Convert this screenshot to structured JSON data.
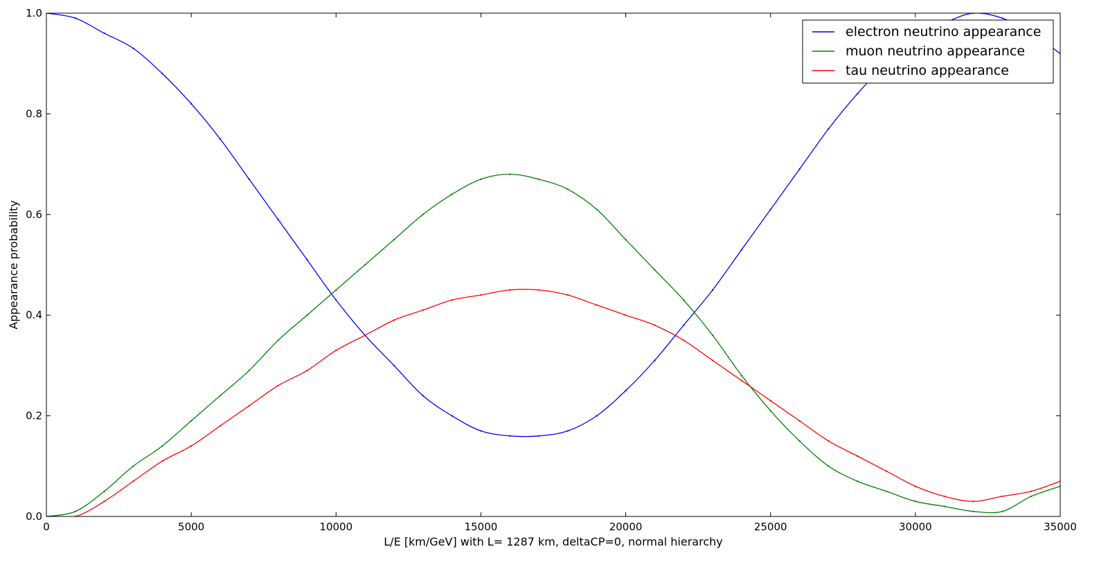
{
  "chart_data": {
    "type": "line",
    "title": "",
    "xlabel": "L/E [km/GeV]  with  L= 1287 km, deltaCP=0, normal hierarchy",
    "ylabel": "Appearance probability",
    "xlim": [
      0,
      35000
    ],
    "ylim": [
      0.0,
      1.0
    ],
    "x_ticks": [
      0,
      5000,
      10000,
      15000,
      20000,
      25000,
      30000,
      35000
    ],
    "x_tick_labels": [
      "0",
      "5000",
      "10000",
      "15000",
      "20000",
      "25000",
      "30000",
      "35000"
    ],
    "y_ticks": [
      0.0,
      0.2,
      0.4,
      0.6,
      0.8,
      1.0
    ],
    "y_tick_labels": [
      "0.0",
      "0.2",
      "0.4",
      "0.6",
      "0.8",
      "1.0"
    ],
    "grid": false,
    "legend_position": "top-right",
    "x": [
      0,
      1000,
      2000,
      3000,
      4000,
      5000,
      6000,
      7000,
      8000,
      9000,
      10000,
      11000,
      12000,
      13000,
      14000,
      15000,
      16000,
      17000,
      18000,
      19000,
      20000,
      21000,
      22000,
      23000,
      24000,
      25000,
      26000,
      27000,
      28000,
      29000,
      30000,
      31000,
      32000,
      33000,
      34000,
      35000
    ],
    "series": [
      {
        "name": "electron neutrino appearance",
        "color": "#0000ff",
        "values": [
          1.0,
          0.99,
          0.96,
          0.93,
          0.88,
          0.82,
          0.75,
          0.67,
          0.59,
          0.51,
          0.43,
          0.36,
          0.3,
          0.24,
          0.2,
          0.17,
          0.16,
          0.16,
          0.17,
          0.2,
          0.25,
          0.31,
          0.38,
          0.45,
          0.53,
          0.61,
          0.69,
          0.77,
          0.84,
          0.9,
          0.95,
          0.98,
          1.0,
          0.99,
          0.96,
          0.92
        ]
      },
      {
        "name": "muon neutrino appearance",
        "color": "#008000",
        "values": [
          0.0,
          0.01,
          0.05,
          0.1,
          0.14,
          0.19,
          0.24,
          0.29,
          0.35,
          0.4,
          0.45,
          0.5,
          0.55,
          0.6,
          0.64,
          0.67,
          0.68,
          0.67,
          0.65,
          0.61,
          0.55,
          0.49,
          0.43,
          0.36,
          0.28,
          0.21,
          0.15,
          0.1,
          0.07,
          0.05,
          0.03,
          0.02,
          0.01,
          0.01,
          0.04,
          0.06
        ]
      },
      {
        "name": "tau neutrino appearance",
        "color": "#ff0000",
        "values": [
          0.0,
          0.0,
          0.03,
          0.07,
          0.11,
          0.14,
          0.18,
          0.22,
          0.26,
          0.29,
          0.33,
          0.36,
          0.39,
          0.41,
          0.43,
          0.44,
          0.45,
          0.45,
          0.44,
          0.42,
          0.4,
          0.38,
          0.35,
          0.31,
          0.27,
          0.23,
          0.19,
          0.15,
          0.12,
          0.09,
          0.06,
          0.04,
          0.03,
          0.04,
          0.05,
          0.07
        ]
      }
    ]
  }
}
